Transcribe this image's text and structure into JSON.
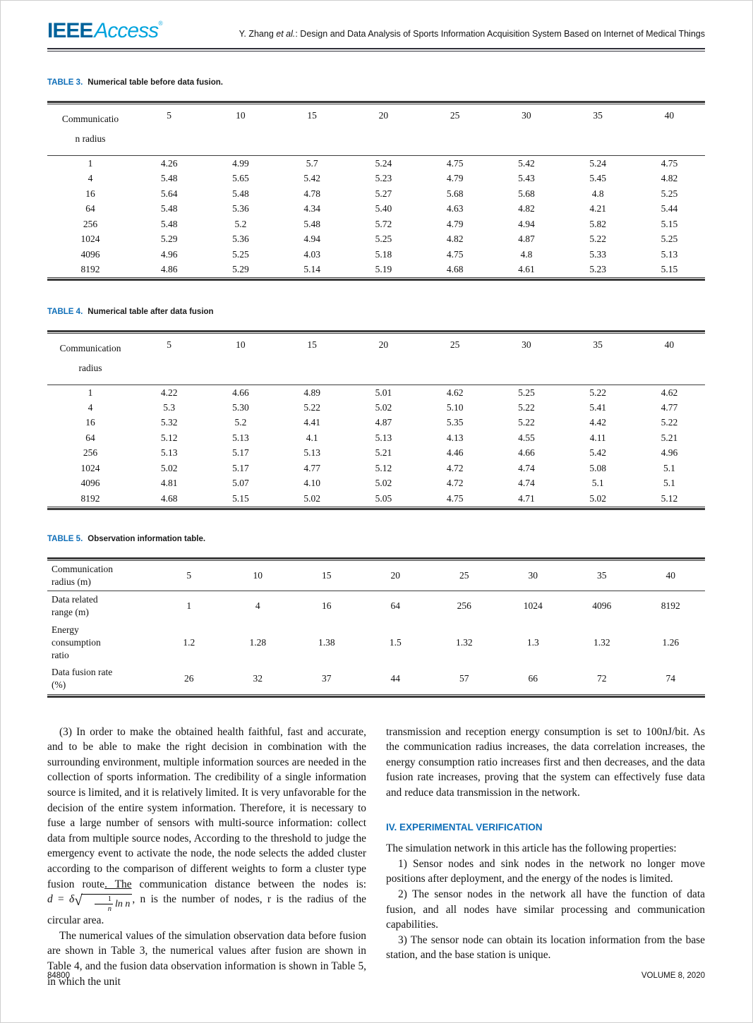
{
  "header": {
    "logo": {
      "ieee": "IEEE",
      "access": "Access",
      "regmark": "®"
    },
    "running_head": {
      "authors": "Y. Zhang ",
      "etal": "et al.",
      "rest": ": Design and Data Analysis of Sports Information Acquisition System Based on Internet of Medical Things"
    }
  },
  "tables": [
    {
      "caption_label": "TABLE 3.",
      "caption": "Numerical table before data fusion.",
      "row_header": "Communicatio\nn radius",
      "columns": [
        "5",
        "10",
        "15",
        "20",
        "25",
        "30",
        "35",
        "40"
      ],
      "rows": [
        {
          "label": "1",
          "values": [
            "4.26",
            "4.99",
            "5.7",
            "5.24",
            "4.75",
            "5.42",
            "5.24",
            "4.75"
          ]
        },
        {
          "label": "4",
          "values": [
            "5.48",
            "5.65",
            "5.42",
            "5.23",
            "4.79",
            "5.43",
            "5.45",
            "4.82"
          ]
        },
        {
          "label": "16",
          "values": [
            "5.64",
            "5.48",
            "4.78",
            "5.27",
            "5.68",
            "5.68",
            "4.8",
            "5.25"
          ]
        },
        {
          "label": "64",
          "values": [
            "5.48",
            "5.36",
            "4.34",
            "5.40",
            "4.63",
            "4.82",
            "4.21",
            "5.44"
          ]
        },
        {
          "label": "256",
          "values": [
            "5.48",
            "5.2",
            "5.48",
            "5.72",
            "4.79",
            "4.94",
            "5.82",
            "5.15"
          ]
        },
        {
          "label": "1024",
          "values": [
            "5.29",
            "5.36",
            "4.94",
            "5.25",
            "4.82",
            "4.87",
            "5.22",
            "5.25"
          ]
        },
        {
          "label": "4096",
          "values": [
            "4.96",
            "5.25",
            "4.03",
            "5.18",
            "4.75",
            "4.8",
            "5.33",
            "5.13"
          ]
        },
        {
          "label": "8192",
          "values": [
            "4.86",
            "5.29",
            "5.14",
            "5.19",
            "4.68",
            "4.61",
            "5.23",
            "5.15"
          ]
        }
      ]
    },
    {
      "caption_label": "TABLE 4.",
      "caption": "Numerical table after data fusion",
      "row_header": "Communication\nradius",
      "columns": [
        "5",
        "10",
        "15",
        "20",
        "25",
        "30",
        "35",
        "40"
      ],
      "rows": [
        {
          "label": "1",
          "values": [
            "4.22",
            "4.66",
            "4.89",
            "5.01",
            "4.62",
            "5.25",
            "5.22",
            "4.62"
          ]
        },
        {
          "label": "4",
          "values": [
            "5.3",
            "5.30",
            "5.22",
            "5.02",
            "5.10",
            "5.22",
            "5.41",
            "4.77"
          ]
        },
        {
          "label": "16",
          "values": [
            "5.32",
            "5.2",
            "4.41",
            "4.87",
            "5.35",
            "5.22",
            "4.42",
            "5.22"
          ]
        },
        {
          "label": "64",
          "values": [
            "5.12",
            "5.13",
            "4.1",
            "5.13",
            "4.13",
            "4.55",
            "4.11",
            "5.21"
          ]
        },
        {
          "label": "256",
          "values": [
            "5.13",
            "5.17",
            "5.13",
            "5.21",
            "4.46",
            "4.66",
            "5.42",
            "4.96"
          ]
        },
        {
          "label": "1024",
          "values": [
            "5.02",
            "5.17",
            "4.77",
            "5.12",
            "4.72",
            "4.74",
            "5.08",
            "5.1"
          ]
        },
        {
          "label": "4096",
          "values": [
            "4.81",
            "5.07",
            "4.10",
            "5.02",
            "4.72",
            "4.74",
            "5.1",
            "5.1"
          ]
        },
        {
          "label": "8192",
          "values": [
            "4.68",
            "5.15",
            "5.02",
            "5.05",
            "4.75",
            "4.71",
            "5.02",
            "5.12"
          ]
        }
      ]
    }
  ],
  "table5": {
    "caption_label": "TABLE 5.",
    "caption": "Observation information table.",
    "header": {
      "label": "Communication\nradius (m)",
      "values": [
        "5",
        "10",
        "15",
        "20",
        "25",
        "30",
        "35",
        "40"
      ]
    },
    "rows": [
      {
        "label": "Data related\nrange (m)",
        "values": [
          "1",
          "4",
          "16",
          "64",
          "256",
          "1024",
          "4096",
          "8192"
        ]
      },
      {
        "label": "Energy\nconsumption\nratio",
        "values": [
          "1.2",
          "1.28",
          "1.38",
          "1.5",
          "1.32",
          "1.3",
          "1.32",
          "1.26"
        ]
      },
      {
        "label": "Data fusion rate\n(%)",
        "values": [
          "26",
          "32",
          "37",
          "44",
          "57",
          "66",
          "72",
          "74"
        ]
      }
    ]
  },
  "body": {
    "left": {
      "p1_pre": "(3) In order to make the obtained health faithful, fast and accurate, and to be able to make the right decision in combination with the surrounding environment, multiple information sources are needed in the collection of sports information. The credibility of a single information source is limited, and it is relatively limited. It is very unfavorable for the decision of the entire system information. Therefore, it is necessary to fuse a large number of sensors with multi-source information: collect data from multiple source nodes, According to the threshold to judge the emergency event to activate the node, the node selects the added cluster according to the comparison of different weights to form a cluster type fusion route",
      "p1_underlined": ". The",
      "p1_mid": " communication distance between the nodes is: ",
      "formula": {
        "lhs": "d",
        "eq": " = ",
        "coef": "δ",
        "frac_num": "1",
        "frac_den": "n",
        "radicand_rest": "ln n"
      },
      "p1_post": ", n is the number of nodes, r is the radius of the circular area.",
      "p2": "The numerical values of the simulation observation data before fusion are shown in Table 3, the numerical values after fusion are shown in Table 4, and the fusion data observation information is shown in Table 5, in which the unit"
    },
    "right": {
      "p1": "transmission and reception energy consumption is set to 100nJ/bit. As the communication radius increases, the data correlation increases, the energy consumption ratio increases first and then decreases, and the data fusion rate increases, proving that the system can effectively fuse data and reduce data transmission in the network.",
      "heading": "IV. EXPERIMENTAL VERIFICATION",
      "p2": "The simulation network in this article has the following properties:",
      "items": [
        "1) Sensor nodes and sink nodes in the network no longer move positions after deployment, and the energy of the nodes is limited.",
        "2) The sensor nodes in the network all have the function of data fusion, and all nodes have similar processing and communication capabilities.",
        "3) The sensor node can obtain its location information from the base station, and the base station is unique."
      ]
    }
  },
  "footer": {
    "page_number": "84800",
    "volume": "VOLUME 8, 2020"
  },
  "colors": {
    "accent_blue": "#0e6eb8",
    "logo_ieee_blue": "#00629b",
    "logo_access_blue": "#00a3dd",
    "rule_dark": "#3c3c3c"
  }
}
